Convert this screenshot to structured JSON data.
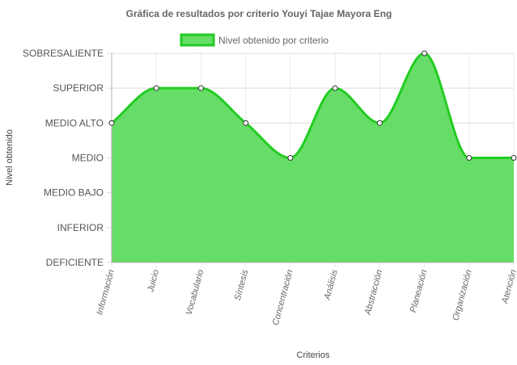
{
  "chart_data": {
    "type": "area",
    "title": "Gráfica de resultados por criterio Youyi Tajae Mayora Eng",
    "xlabel": "Criterios",
    "ylabel": "Nivel obtenido",
    "y_levels": [
      "DEFICIENTE",
      "INFERIOR",
      "MEDIO BAJO",
      "MEDIO",
      "MEDIO ALTO",
      "SUPERIOR",
      "SOBRESALIENTE"
    ],
    "categories": [
      "Información",
      "Juicio",
      "Vocabulario",
      "Síntesis",
      "Concentración",
      "Análisis",
      "Abstracción",
      "Planeación",
      "Organización",
      "Atención"
    ],
    "series": [
      {
        "name": "Nivel obtenido por criterio",
        "values": [
          "MEDIO ALTO",
          "SUPERIOR",
          "SUPERIOR",
          "MEDIO ALTO",
          "MEDIO",
          "SUPERIOR",
          "MEDIO ALTO",
          "SOBRESALIENTE",
          "MEDIO",
          "MEDIO"
        ],
        "fill_color": "#66dd66",
        "line_color": "#22cc22"
      }
    ],
    "grid": true,
    "legend_position": "top"
  }
}
